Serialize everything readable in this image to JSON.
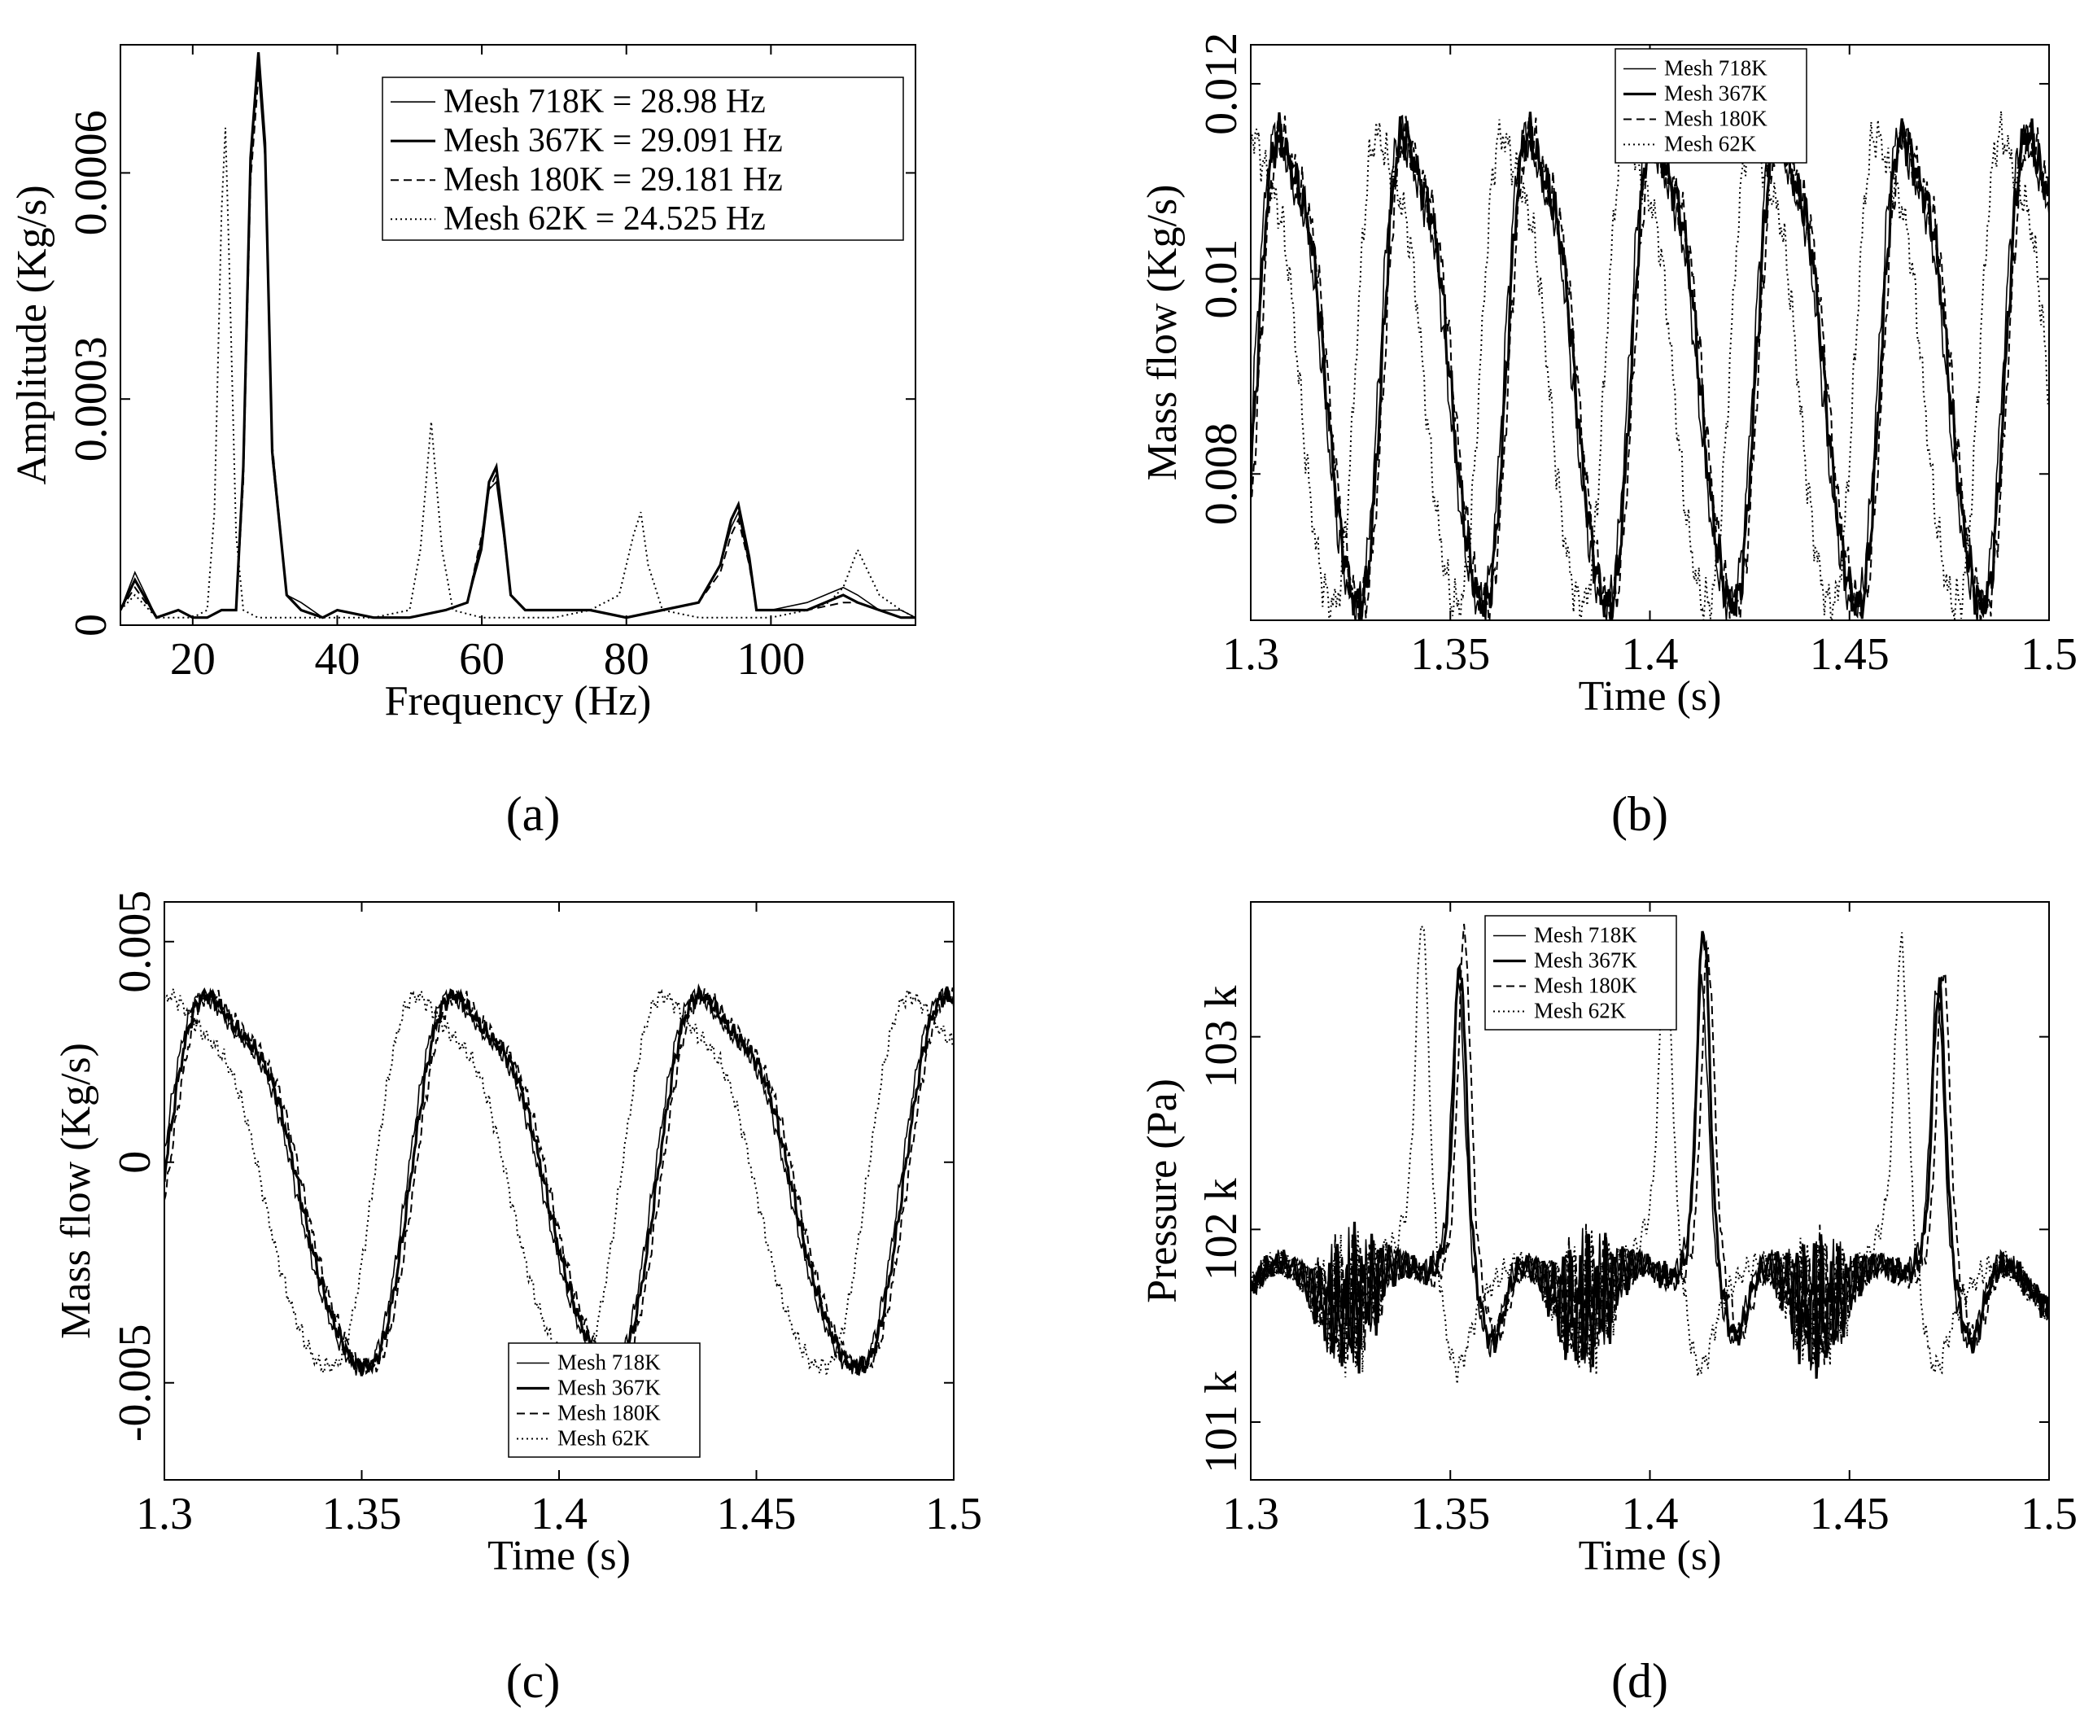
{
  "chart_data": [
    {
      "panel": "(a)",
      "type": "line",
      "xlabel": "Frequency (Hz)",
      "ylabel": "Amplitude (Kg/s)",
      "xlim": [
        10,
        120
      ],
      "ylim": [
        0,
        0.00077
      ],
      "xticks": [
        20,
        40,
        60,
        80,
        100
      ],
      "xtick_labels": [
        "20",
        "40",
        "60",
        "80",
        "100"
      ],
      "yticks": [
        0,
        0.0003,
        0.0006
      ],
      "ytick_labels": [
        "0",
        "0.0003",
        "0.0006"
      ],
      "legend_position": "top-right",
      "series": [
        {
          "name": "Mesh 718K = 28.98 Hz",
          "style": "thin",
          "x": [
            10,
            12,
            15,
            18,
            20,
            22,
            24,
            26,
            27,
            28,
            28.98,
            30,
            31,
            33,
            35,
            38,
            40,
            45,
            50,
            55,
            58,
            60,
            61,
            62,
            63,
            64,
            66,
            70,
            75,
            80,
            85,
            90,
            93,
            94.5,
            95.5,
            97,
            98,
            100,
            105,
            110,
            112,
            115,
            118,
            120
          ],
          "y": [
            2e-05,
            7e-05,
            1e-05,
            2e-05,
            1e-05,
            1e-05,
            2e-05,
            2e-05,
            0.0002,
            0.0006,
            0.00075,
            0.00062,
            0.00022,
            4e-05,
            3e-05,
            1e-05,
            2e-05,
            1e-05,
            1e-05,
            2e-05,
            3e-05,
            0.0001,
            0.00018,
            0.00019,
            0.00012,
            4e-05,
            2e-05,
            2e-05,
            2e-05,
            1e-05,
            2e-05,
            3e-05,
            8e-05,
            0.00013,
            0.00015,
            8e-05,
            2e-05,
            2e-05,
            3e-05,
            5e-05,
            4e-05,
            2e-05,
            2e-05,
            1e-05
          ]
        },
        {
          "name": "Mesh 367K = 29.091 Hz",
          "style": "thick",
          "x": [
            10,
            12,
            15,
            18,
            20,
            22,
            24,
            26,
            27,
            28,
            29.091,
            30,
            31,
            33,
            35,
            38,
            40,
            45,
            50,
            55,
            58,
            60,
            61,
            62,
            63,
            64,
            66,
            70,
            75,
            80,
            85,
            90,
            93,
            94.5,
            95.5,
            97,
            98,
            100,
            105,
            110,
            112,
            115,
            118,
            120
          ],
          "y": [
            2e-05,
            6e-05,
            1e-05,
            2e-05,
            1e-05,
            1e-05,
            2e-05,
            2e-05,
            0.00021,
            0.00062,
            0.00076,
            0.00064,
            0.00023,
            4e-05,
            2e-05,
            1e-05,
            2e-05,
            1e-05,
            1e-05,
            2e-05,
            3e-05,
            0.00011,
            0.00019,
            0.00021,
            0.00013,
            4e-05,
            2e-05,
            2e-05,
            2e-05,
            1e-05,
            2e-05,
            3e-05,
            8e-05,
            0.00014,
            0.00016,
            9e-05,
            2e-05,
            2e-05,
            2e-05,
            4e-05,
            3e-05,
            2e-05,
            1e-05,
            1e-05
          ]
        },
        {
          "name": "Mesh 180K = 29.181 Hz",
          "style": "dashed",
          "x": [
            10,
            12,
            15,
            18,
            20,
            22,
            24,
            26,
            27,
            28,
            29.181,
            30,
            31,
            33,
            35,
            38,
            40,
            45,
            50,
            55,
            58,
            60,
            61,
            62,
            63,
            64,
            66,
            70,
            75,
            80,
            85,
            90,
            93,
            94.5,
            95.5,
            97,
            98,
            100,
            105,
            110,
            112,
            115,
            118,
            120
          ],
          "y": [
            2e-05,
            5e-05,
            1e-05,
            2e-05,
            1e-05,
            1e-05,
            2e-05,
            2e-05,
            0.00019,
            0.00059,
            0.00074,
            0.00063,
            0.00024,
            4e-05,
            2e-05,
            1e-05,
            2e-05,
            1e-05,
            1e-05,
            2e-05,
            3e-05,
            0.00012,
            0.00018,
            0.0002,
            0.00013,
            4e-05,
            2e-05,
            2e-05,
            2e-05,
            1e-05,
            2e-05,
            3e-05,
            7e-05,
            0.00012,
            0.00014,
            8e-05,
            2e-05,
            2e-05,
            2e-05,
            3e-05,
            3e-05,
            2e-05,
            1e-05,
            1e-05
          ]
        },
        {
          "name": "Mesh 62K = 24.525 Hz",
          "style": "dotted",
          "x": [
            10,
            12,
            15,
            18,
            20,
            22,
            23,
            24,
            24.525,
            25,
            26,
            27,
            29,
            32,
            35,
            40,
            45,
            50,
            51.5,
            53,
            54.5,
            56,
            60,
            65,
            70,
            75,
            79,
            81,
            82,
            83,
            85,
            90,
            95,
            100,
            105,
            108,
            110,
            112,
            115,
            118,
            120
          ],
          "y": [
            2e-05,
            4e-05,
            1e-05,
            1e-05,
            1e-05,
            2e-05,
            0.00015,
            0.00055,
            0.00066,
            0.0005,
            0.00012,
            2e-05,
            1e-05,
            1e-05,
            1e-05,
            1e-05,
            1e-05,
            2e-05,
            0.0001,
            0.00027,
            0.0001,
            2e-05,
            1e-05,
            1e-05,
            1e-05,
            2e-05,
            4e-05,
            0.00012,
            0.00015,
            8e-05,
            2e-05,
            1e-05,
            1e-05,
            1e-05,
            2e-05,
            3e-05,
            5e-05,
            0.0001,
            4e-05,
            2e-05,
            1e-05
          ]
        }
      ]
    },
    {
      "panel": "(b)",
      "type": "line",
      "xlabel": "Time (s)",
      "ylabel": "Mass flow (Kg/s)",
      "xlim": [
        1.3,
        1.5
      ],
      "ylim": [
        0.0065,
        0.0124
      ],
      "xticks": [
        1.3,
        1.35,
        1.4,
        1.45,
        1.5
      ],
      "xtick_labels": [
        "1.3",
        "1.35",
        "1.4",
        "1.45",
        "1.5"
      ],
      "yticks": [
        0.008,
        0.01,
        0.012
      ],
      "ytick_labels": [
        "0.008",
        "0.01",
        "0.012"
      ],
      "legend_position": "top-left",
      "signal": {
        "mean": 0.0092,
        "amp": 0.0024,
        "period": 0.03125,
        "phase": -0.294
      },
      "series": [
        {
          "name": "Mesh 718K",
          "style": "thin",
          "shift": 0.0
        },
        {
          "name": "Mesh 367K",
          "style": "thick",
          "shift": 0.0006
        },
        {
          "name": "Mesh 180K",
          "style": "dashed",
          "shift": 0.0012
        },
        {
          "name": "Mesh 62K",
          "style": "dotted",
          "shift": -0.006
        }
      ]
    },
    {
      "panel": "(c)",
      "type": "line",
      "xlabel": "Time (s)",
      "ylabel": "Mass flow (Kg/s)",
      "xlim": [
        1.3,
        1.5
      ],
      "ylim": [
        -0.0072,
        0.0059
      ],
      "xticks": [
        1.3,
        1.35,
        1.4,
        1.45,
        1.5
      ],
      "xtick_labels": [
        "1.3",
        "1.35",
        "1.4",
        "1.45",
        "1.5"
      ],
      "yticks": [
        -0.005,
        0,
        0.005
      ],
      "ytick_labels": [
        "-0.005",
        "0",
        "0.005"
      ],
      "legend_position": "bottom-center",
      "signal": {
        "mean": -0.0002,
        "amp": 0.0042,
        "period": 0.0625,
        "phase": 0.0
      },
      "series": [
        {
          "name": "Mesh 718K",
          "style": "thin",
          "shift": 0.0
        },
        {
          "name": "Mesh 367K",
          "style": "thick",
          "shift": 0.0008
        },
        {
          "name": "Mesh 180K",
          "style": "dashed",
          "shift": 0.0018
        },
        {
          "name": "Mesh 62K",
          "style": "dotted",
          "shift": -0.0085
        }
      ]
    },
    {
      "panel": "(d)",
      "type": "line",
      "xlabel": "Time (s)",
      "ylabel": "Pressure (Pa)",
      "xlim": [
        1.3,
        1.5
      ],
      "ylim": [
        100700,
        103700
      ],
      "xticks": [
        1.3,
        1.35,
        1.4,
        1.45,
        1.5
      ],
      "xtick_labels": [
        "1.3",
        "1.35",
        "1.4",
        "1.45",
        "1.5"
      ],
      "yticks": [
        101000,
        102000,
        103000
      ],
      "ytick_labels": [
        "101 k",
        "102 k",
        "103 k"
      ],
      "legend_position": "top-left",
      "signal": {
        "base": 101700,
        "spikes": [
          1.352,
          1.413,
          1.472
        ],
        "spike_amp": 1500
      },
      "series": [
        {
          "name": "Mesh 718K",
          "style": "thin",
          "shift": 0.0
        },
        {
          "name": "Mesh 367K",
          "style": "thick",
          "shift": 0.0004
        },
        {
          "name": "Mesh 180K",
          "style": "dashed",
          "shift": 0.0015
        },
        {
          "name": "Mesh 62K",
          "style": "dotted",
          "shift": -0.009
        }
      ]
    }
  ]
}
